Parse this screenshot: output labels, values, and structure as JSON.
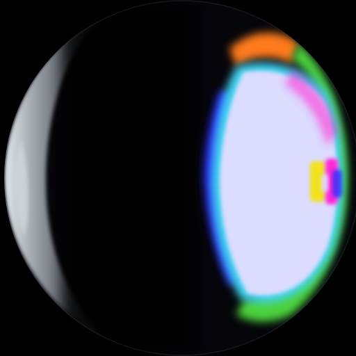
{
  "scene": {
    "description_label": "",
    "background_color": "#000000",
    "sphere": {
      "body_color": "#05050a",
      "rim_highlight_color": "#cfd6dc",
      "rim_shadow_color": "#3a3f46",
      "glow_core_color": "#dcdcff",
      "glow_cyan_color": "#3fd3f0",
      "glow_blue_color": "#2a2cff",
      "glow_green_color": "#4cd23c",
      "glow_orange_color": "#ff7a1e",
      "glow_magenta_color": "#ff2ad6",
      "glow_yellow_color": "#f2e21a"
    }
  }
}
